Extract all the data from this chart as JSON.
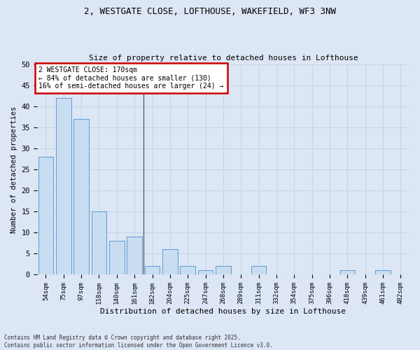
{
  "title_line1": "2, WESTGATE CLOSE, LOFTHOUSE, WAKEFIELD, WF3 3NW",
  "title_line2": "Size of property relative to detached houses in Lofthouse",
  "xlabel": "Distribution of detached houses by size in Lofthouse",
  "ylabel": "Number of detached properties",
  "categories": [
    "54sqm",
    "75sqm",
    "97sqm",
    "118sqm",
    "140sqm",
    "161sqm",
    "182sqm",
    "204sqm",
    "225sqm",
    "247sqm",
    "268sqm",
    "289sqm",
    "311sqm",
    "332sqm",
    "354sqm",
    "375sqm",
    "396sqm",
    "418sqm",
    "439sqm",
    "461sqm",
    "482sqm"
  ],
  "values": [
    28,
    42,
    37,
    15,
    8,
    9,
    2,
    6,
    2,
    1,
    2,
    0,
    2,
    0,
    0,
    0,
    0,
    1,
    0,
    1,
    0
  ],
  "bar_color": "#c9ddf0",
  "bar_edge_color": "#5b9bd5",
  "annotation_text_line1": "2 WESTGATE CLOSE: 170sqm",
  "annotation_text_line2": "← 84% of detached houses are smaller (130)",
  "annotation_text_line3": "16% of semi-detached houses are larger (24) →",
  "annotation_box_color": "#cc0000",
  "annotation_bg": "#ffffff",
  "grid_color": "#c8d4e8",
  "bg_color": "#dce6f5",
  "ylim": [
    0,
    50
  ],
  "yticks": [
    0,
    5,
    10,
    15,
    20,
    25,
    30,
    35,
    40,
    45,
    50
  ],
  "footer_line1": "Contains HM Land Registry data © Crown copyright and database right 2025.",
  "footer_line2": "Contains public sector information licensed under the Open Government Licence v3.0."
}
